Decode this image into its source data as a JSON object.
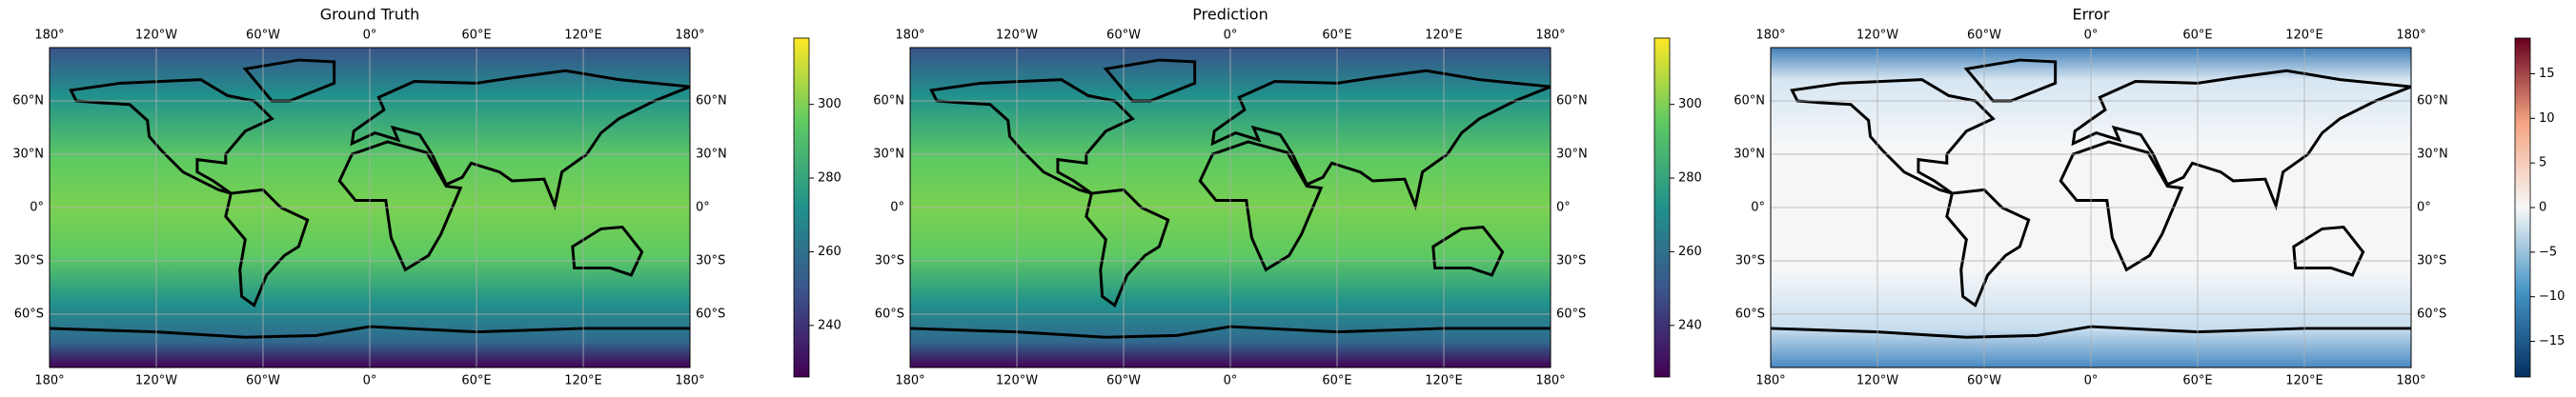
{
  "map": {
    "xlim": [
      -180,
      180
    ],
    "ylim": [
      -90,
      90
    ],
    "xticks": [
      {
        "value": -180,
        "label": "180°"
      },
      {
        "value": -120,
        "label": "120°W"
      },
      {
        "value": -60,
        "label": "60°W"
      },
      {
        "value": 0,
        "label": "0°"
      },
      {
        "value": 60,
        "label": "60°E"
      },
      {
        "value": 120,
        "label": "120°E"
      },
      {
        "value": 180,
        "label": "180°"
      }
    ],
    "yticks": [
      {
        "value": 60,
        "label": "60°N"
      },
      {
        "value": 30,
        "label": "30°N"
      },
      {
        "value": 0,
        "label": "0°"
      },
      {
        "value": -30,
        "label": "30°S"
      },
      {
        "value": -60,
        "label": "60°S"
      }
    ],
    "grid": true
  },
  "panels": [
    {
      "title": "Ground Truth",
      "colormap": "viridis",
      "colorbar": {
        "lim": [
          226,
          318
        ],
        "ticks": [
          240,
          260,
          280,
          300
        ]
      }
    },
    {
      "title": "Prediction",
      "colormap": "viridis",
      "colorbar": {
        "lim": [
          226,
          318
        ],
        "ticks": [
          240,
          260,
          280,
          300
        ]
      }
    },
    {
      "title": "Error",
      "colormap": "RdBu_r",
      "colorbar": {
        "lim": [
          -19,
          19
        ],
        "ticks": [
          {
            "value": -15,
            "label": "−15"
          },
          {
            "value": -10,
            "label": "−10"
          },
          {
            "value": -5,
            "label": "−5"
          },
          0,
          5,
          10,
          15
        ]
      }
    }
  ]
}
